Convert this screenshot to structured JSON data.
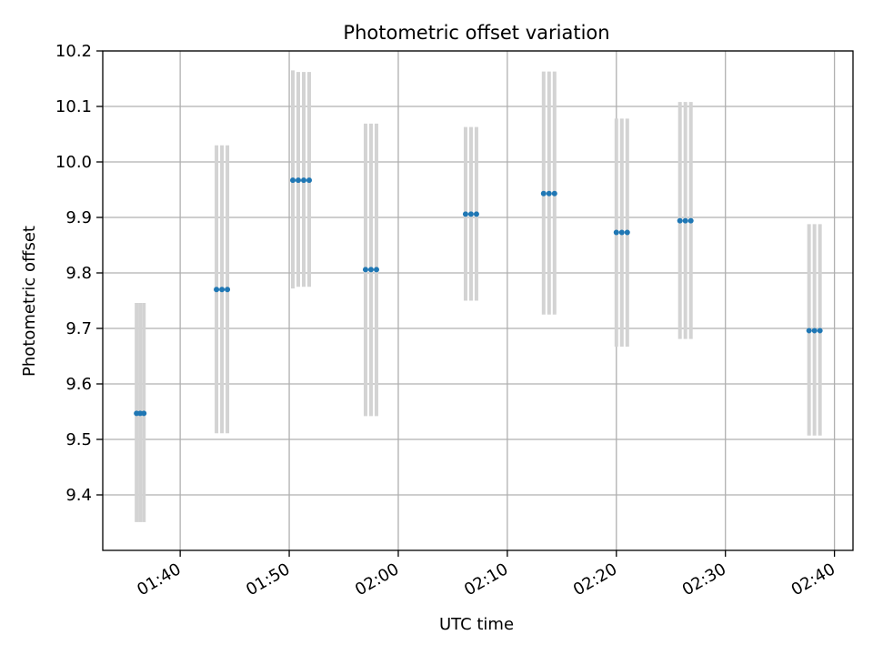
{
  "chart_data": {
    "type": "scatter",
    "title": "Photometric offset variation",
    "xlabel": "UTC time",
    "ylabel": "Photometric offset",
    "x_tick_labels": [
      "01:40",
      "01:50",
      "02:00",
      "02:10",
      "02:20",
      "02:30",
      "02:40"
    ],
    "y_tick_labels": [
      "9.4",
      "9.5",
      "9.6",
      "9.7",
      "9.8",
      "9.9",
      "10.0",
      "10.1",
      "10.2"
    ],
    "x_ticks_minutes": [
      100,
      110,
      120,
      130,
      140,
      150,
      160
    ],
    "y_ticks": [
      9.4,
      9.5,
      9.6,
      9.7,
      9.8,
      9.9,
      10.0,
      10.1,
      10.2
    ],
    "xlim_minutes": [
      92.9,
      161.7
    ],
    "ylim": [
      9.3,
      10.2
    ],
    "grid": true,
    "colors": {
      "marker": "#1f77b4",
      "errorbar": "#d3d3d3",
      "grid": "#b0b0b0"
    },
    "series": [
      {
        "points": [
          {
            "t": "01:36:00",
            "tm": 96.0,
            "y": 9.547,
            "err_low": 0.196,
            "err_high": 0.199
          },
          {
            "t": "01:36:20",
            "tm": 96.33,
            "y": 9.547,
            "err_low": 0.196,
            "err_high": 0.199
          },
          {
            "t": "01:36:40",
            "tm": 96.67,
            "y": 9.547,
            "err_low": 0.196,
            "err_high": 0.199
          },
          {
            "t": "01:43:20",
            "tm": 103.33,
            "y": 9.77,
            "err_low": 0.259,
            "err_high": 0.26
          },
          {
            "t": "01:43:50",
            "tm": 103.83,
            "y": 9.77,
            "err_low": 0.259,
            "err_high": 0.26
          },
          {
            "t": "01:44:20",
            "tm": 104.33,
            "y": 9.77,
            "err_low": 0.259,
            "err_high": 0.26
          },
          {
            "t": "01:50:20",
            "tm": 110.33,
            "y": 9.967,
            "err_low": 0.195,
            "err_high": 0.198
          },
          {
            "t": "01:50:50",
            "tm": 110.83,
            "y": 9.967,
            "err_low": 0.192,
            "err_high": 0.195
          },
          {
            "t": "01:51:20",
            "tm": 111.33,
            "y": 9.967,
            "err_low": 0.192,
            "err_high": 0.195
          },
          {
            "t": "01:51:50",
            "tm": 111.83,
            "y": 9.967,
            "err_low": 0.192,
            "err_high": 0.195
          },
          {
            "t": "01:57:00",
            "tm": 117.0,
            "y": 9.806,
            "err_low": 0.264,
            "err_high": 0.263
          },
          {
            "t": "01:57:30",
            "tm": 117.5,
            "y": 9.806,
            "err_low": 0.264,
            "err_high": 0.263
          },
          {
            "t": "01:58:00",
            "tm": 118.0,
            "y": 9.806,
            "err_low": 0.264,
            "err_high": 0.263
          },
          {
            "t": "02:06:10",
            "tm": 126.17,
            "y": 9.906,
            "err_low": 0.156,
            "err_high": 0.157
          },
          {
            "t": "02:06:40",
            "tm": 126.67,
            "y": 9.906,
            "err_low": 0.156,
            "err_high": 0.157
          },
          {
            "t": "02:07:10",
            "tm": 127.17,
            "y": 9.906,
            "err_low": 0.156,
            "err_high": 0.157
          },
          {
            "t": "02:13:20",
            "tm": 133.33,
            "y": 9.943,
            "err_low": 0.218,
            "err_high": 0.22
          },
          {
            "t": "02:13:50",
            "tm": 133.83,
            "y": 9.943,
            "err_low": 0.218,
            "err_high": 0.22
          },
          {
            "t": "02:14:20",
            "tm": 134.33,
            "y": 9.943,
            "err_low": 0.218,
            "err_high": 0.22
          },
          {
            "t": "02:20:00",
            "tm": 140.0,
            "y": 9.873,
            "err_low": 0.206,
            "err_high": 0.205
          },
          {
            "t": "02:20:30",
            "tm": 140.5,
            "y": 9.873,
            "err_low": 0.206,
            "err_high": 0.205
          },
          {
            "t": "02:21:00",
            "tm": 141.0,
            "y": 9.873,
            "err_low": 0.206,
            "err_high": 0.205
          },
          {
            "t": "02:25:50",
            "tm": 145.83,
            "y": 9.894,
            "err_low": 0.213,
            "err_high": 0.214
          },
          {
            "t": "02:26:20",
            "tm": 146.33,
            "y": 9.894,
            "err_low": 0.213,
            "err_high": 0.214
          },
          {
            "t": "02:26:50",
            "tm": 146.83,
            "y": 9.894,
            "err_low": 0.213,
            "err_high": 0.214
          },
          {
            "t": "02:37:40",
            "tm": 157.67,
            "y": 9.696,
            "err_low": 0.189,
            "err_high": 0.192
          },
          {
            "t": "02:38:10",
            "tm": 158.17,
            "y": 9.696,
            "err_low": 0.189,
            "err_high": 0.192
          },
          {
            "t": "02:38:40",
            "tm": 158.67,
            "y": 9.696,
            "err_low": 0.189,
            "err_high": 0.192
          }
        ]
      }
    ]
  }
}
